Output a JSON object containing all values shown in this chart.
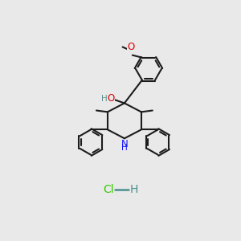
{
  "background_color": "#e9e9e9",
  "bond_color": "#1c1c1c",
  "bond_lw": 1.5,
  "N_color": "#1414ff",
  "O_color": "#e00000",
  "OH_color": "#5a9090",
  "Cl_color": "#33cc00",
  "HCl_color": "#4a9090",
  "font_size": 8.5,
  "figsize": [
    3.0,
    3.0
  ],
  "dpi": 100,
  "xlim": [
    0,
    10
  ],
  "ylim": [
    0,
    10
  ]
}
